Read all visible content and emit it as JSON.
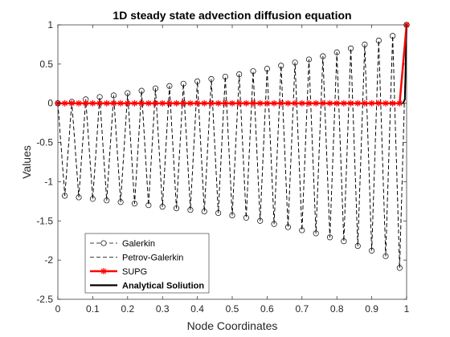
{
  "chart_data": {
    "type": "line",
    "title": "1D steady state advection diffusion equation",
    "xlabel": "Node Coordinates",
    "ylabel": "Values",
    "xlim": [
      0,
      1
    ],
    "ylim": [
      -2.5,
      1
    ],
    "xticks": [
      0,
      0.1,
      0.2,
      0.3,
      0.4,
      0.5,
      0.6,
      0.7,
      0.8,
      0.9,
      1
    ],
    "xtick_labels": [
      "0",
      "0.1",
      "0.2",
      "0.3",
      "0.4",
      "0.5",
      "0.6",
      "0.7",
      "0.8",
      "0.9",
      "1"
    ],
    "yticks": [
      -2.5,
      -2,
      -1.5,
      -1,
      -0.5,
      0,
      0.5,
      1
    ],
    "ytick_labels": [
      "-2.5",
      "-2",
      "-1.5",
      "-1",
      "-0.5",
      "0",
      "0.5",
      "1"
    ],
    "grid": false,
    "legend_position": "bottom-left",
    "series": [
      {
        "name": "Galerkin",
        "style": "dashed-circle",
        "color": "#000000",
        "x": [
          0,
          0.02,
          0.04,
          0.06,
          0.08,
          0.1,
          0.12,
          0.14,
          0.16,
          0.18,
          0.2,
          0.22,
          0.24,
          0.26,
          0.28,
          0.3,
          0.32,
          0.34,
          0.36,
          0.38,
          0.4,
          0.42,
          0.44,
          0.46,
          0.48,
          0.5,
          0.52,
          0.54,
          0.56,
          0.58,
          0.6,
          0.62,
          0.64,
          0.66,
          0.68,
          0.7,
          0.72,
          0.74,
          0.76,
          0.78,
          0.8,
          0.82,
          0.84,
          0.86,
          0.88,
          0.9,
          0.92,
          0.94,
          0.96,
          0.98,
          1
        ],
        "y": [
          0,
          -1.18,
          0.02,
          -1.2,
          0.05,
          -1.22,
          0.08,
          -1.24,
          0.1,
          -1.26,
          0.13,
          -1.28,
          0.16,
          -1.3,
          0.19,
          -1.32,
          0.22,
          -1.34,
          0.25,
          -1.36,
          0.28,
          -1.38,
          0.31,
          -1.4,
          0.34,
          -1.43,
          0.37,
          -1.46,
          0.41,
          -1.5,
          0.44,
          -1.54,
          0.48,
          -1.58,
          0.52,
          -1.62,
          0.56,
          -1.66,
          0.6,
          -1.71,
          0.65,
          -1.76,
          0.7,
          -1.82,
          0.75,
          -1.88,
          0.8,
          -1.95,
          0.86,
          -2.1,
          1
        ]
      },
      {
        "name": "Petrov-Galerkin",
        "style": "dashed",
        "color": "#000000",
        "x": [
          0,
          0.02,
          0.04,
          0.06,
          0.08,
          0.1,
          0.12,
          0.14,
          0.16,
          0.18,
          0.2,
          0.22,
          0.24,
          0.26,
          0.28,
          0.3,
          0.32,
          0.34,
          0.36,
          0.38,
          0.4,
          0.42,
          0.44,
          0.46,
          0.48,
          0.5,
          0.52,
          0.54,
          0.56,
          0.58,
          0.6,
          0.62,
          0.64,
          0.66,
          0.68,
          0.7,
          0.72,
          0.74,
          0.76,
          0.78,
          0.8,
          0.82,
          0.84,
          0.86,
          0.88,
          0.9,
          0.92,
          0.94,
          0.96,
          0.98,
          1
        ],
        "y": [
          0,
          -1.18,
          0.02,
          -1.2,
          0.05,
          -1.22,
          0.08,
          -1.24,
          0.1,
          -1.26,
          0.13,
          -1.28,
          0.16,
          -1.3,
          0.19,
          -1.32,
          0.22,
          -1.34,
          0.25,
          -1.36,
          0.28,
          -1.38,
          0.31,
          -1.4,
          0.34,
          -1.43,
          0.37,
          -1.46,
          0.41,
          -1.5,
          0.44,
          -1.54,
          0.48,
          -1.58,
          0.52,
          -1.62,
          0.56,
          -1.66,
          0.6,
          -1.71,
          0.65,
          -1.76,
          0.7,
          -1.82,
          0.75,
          -1.88,
          0.8,
          -1.95,
          0.86,
          -2.1,
          1
        ]
      },
      {
        "name": "SUPG",
        "style": "solid-star",
        "color": "#ff0000",
        "x": [
          0,
          0.02,
          0.04,
          0.06,
          0.08,
          0.1,
          0.12,
          0.14,
          0.16,
          0.18,
          0.2,
          0.22,
          0.24,
          0.26,
          0.28,
          0.3,
          0.32,
          0.34,
          0.36,
          0.38,
          0.4,
          0.42,
          0.44,
          0.46,
          0.48,
          0.5,
          0.52,
          0.54,
          0.56,
          0.58,
          0.6,
          0.62,
          0.64,
          0.66,
          0.68,
          0.7,
          0.72,
          0.74,
          0.76,
          0.78,
          0.8,
          0.82,
          0.84,
          0.86,
          0.88,
          0.9,
          0.92,
          0.94,
          0.96,
          0.98,
          1
        ],
        "y": [
          0,
          0,
          0,
          0,
          0,
          0,
          0,
          0,
          0,
          0,
          0,
          0,
          0,
          0,
          0,
          0,
          0,
          0,
          0,
          0,
          0,
          0,
          0,
          0,
          0,
          0,
          0,
          0,
          0,
          0,
          0,
          0,
          0,
          0,
          0,
          0,
          0,
          0,
          0,
          0,
          0,
          0,
          0,
          0,
          0,
          0,
          0,
          0,
          0,
          0,
          1
        ]
      },
      {
        "name": "Analytical Soliution",
        "style": "solid",
        "color": "#000000",
        "x": [
          0,
          0.9,
          0.95,
          0.98,
          0.99,
          0.995,
          1
        ],
        "y": [
          0,
          0,
          0,
          0,
          0.0003,
          0.05,
          1
        ]
      }
    ]
  }
}
